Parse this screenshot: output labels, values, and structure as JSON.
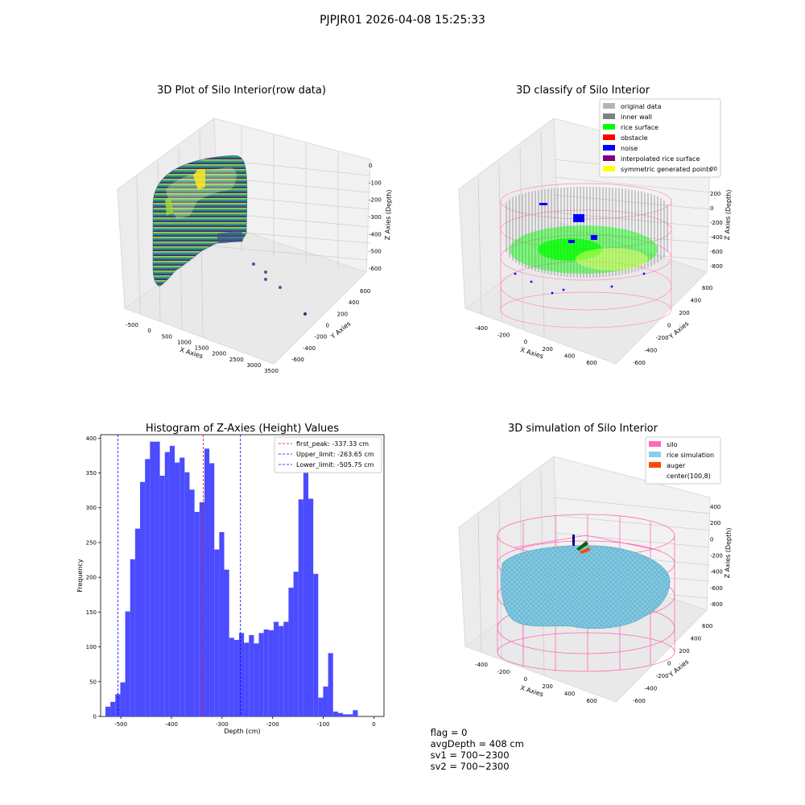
{
  "suptitle": "PJPJR01 2026-04-08 15:25:33",
  "colors": {
    "hist_bar": "#4b4bff",
    "first_peak_line": "#ff0000",
    "limit_line": "#0000ff",
    "pane": "#f2f2f2",
    "silo_wire": "#ff69b4",
    "rice_surface": "#7ec8e3",
    "inner_wall": "#808080",
    "rice_green": "#00ff00"
  },
  "panels": {
    "raw": {
      "title": "3D Plot of Silo Interior(row data)",
      "xlabel": "X Axies",
      "ylabel": "Y Axies",
      "zlabel": "Z Axies (Depth)",
      "xticks": [
        "-500",
        "0",
        "500",
        "1000",
        "1500",
        "2000",
        "2500",
        "3000",
        "3500"
      ],
      "yticks": [
        "600",
        "400",
        "200",
        "0",
        "-200",
        "-400",
        "-600"
      ],
      "zticks": [
        "0",
        "-100",
        "-200",
        "-300",
        "-400",
        "-500",
        "-600"
      ],
      "colormap": "viridis"
    },
    "classify": {
      "title": "3D classify of Silo Interior",
      "xlabel": "X Axies",
      "ylabel": "Y Axies",
      "zlabel": "Z Axies (Depth)",
      "xticks": [
        "-400",
        "-200",
        "0",
        "200",
        "400",
        "600"
      ],
      "yticks": [
        "600",
        "400",
        "200",
        "0",
        "-200",
        "-400",
        "-600"
      ],
      "zticks": [
        "200",
        "0",
        "-200",
        "-400",
        "-600",
        "-800"
      ],
      "zticks_partial": "00",
      "legend": [
        {
          "label": "original data",
          "color": "#b3b3b3"
        },
        {
          "label": "inner wall",
          "color": "#808080"
        },
        {
          "label": "rice surface",
          "color": "#00ff00"
        },
        {
          "label": "obstacle",
          "color": "#ff0000"
        },
        {
          "label": "noise",
          "color": "#0000ff"
        },
        {
          "label": "interpolated rice surface",
          "color": "#800080"
        },
        {
          "label": "symmetric generated points",
          "color": "#ffff00"
        }
      ]
    },
    "simulation": {
      "title": "3D simulation of Silo Interior",
      "xlabel": "X Axies",
      "ylabel": "Y Axies",
      "zlabel": "Z Axies (Depth)",
      "xticks": [
        "-400",
        "-200",
        "0",
        "200",
        "400",
        "600"
      ],
      "yticks": [
        "600",
        "400",
        "200",
        "0",
        "-200",
        "-400",
        "-600"
      ],
      "zticks": [
        "400",
        "200",
        "0",
        "-200",
        "-400",
        "-600",
        "-800"
      ],
      "legend": [
        {
          "label": "silo",
          "color": "#ff69b4"
        },
        {
          "label": "rice simulation",
          "color": "#87ceeb"
        },
        {
          "label": "auger",
          "color": "#ff4500"
        },
        {
          "label": "center(100,8)",
          "color": ""
        }
      ]
    }
  },
  "footer": {
    "flag": "flag = 0",
    "avg": "avgDepth = 408 cm",
    "sv1": "sv1 = 700~2300",
    "sv2": "sv2 = 700~2300"
  },
  "chart_data": [
    {
      "type": "bar",
      "title": "Histogram of Z-Axies (Height) Values",
      "xlabel": "Depth (cm)",
      "ylabel": "Frequency",
      "xlim": [
        -540,
        20
      ],
      "ylim": [
        0,
        405
      ],
      "xticks": [
        -500,
        -400,
        -300,
        -200,
        -100,
        0
      ],
      "yticks": [
        0,
        50,
        100,
        150,
        200,
        250,
        300,
        350,
        400
      ],
      "bin_width": 9.78,
      "bin_start": -530.5,
      "values": [
        14,
        21,
        32,
        49,
        151,
        226,
        270,
        337,
        370,
        395,
        395,
        346,
        380,
        389,
        365,
        372,
        351,
        326,
        294,
        308,
        385,
        364,
        240,
        265,
        211,
        113,
        110,
        120,
        106,
        117,
        105,
        120,
        125,
        124,
        136,
        130,
        136,
        185,
        208,
        312,
        353,
        313,
        205,
        27,
        43,
        91,
        7,
        5,
        3,
        3,
        9
      ],
      "vlines": [
        {
          "label": "first_peak: -337.33 cm",
          "x": -337.33,
          "color": "#ff0000"
        },
        {
          "label": "Upper_limit: -263.65 cm",
          "x": -263.65,
          "color": "#0000ff"
        },
        {
          "label": "Lower_limit: -505.75 cm",
          "x": -505.75,
          "color": "#0000ff"
        }
      ],
      "legend_position": "top-right"
    }
  ]
}
